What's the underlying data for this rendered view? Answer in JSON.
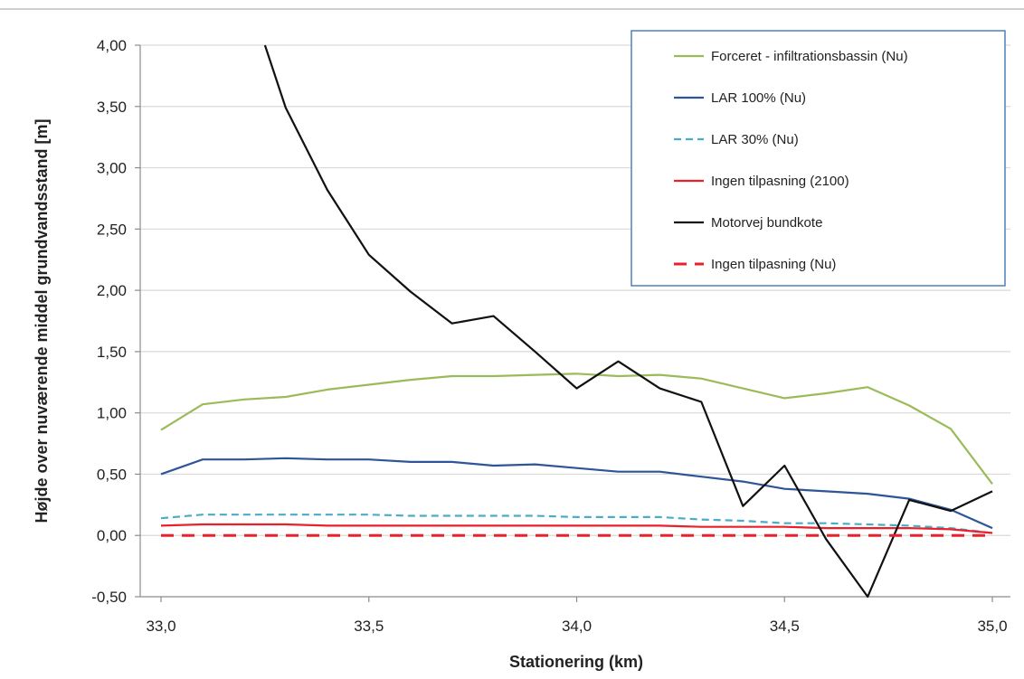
{
  "chart_data": {
    "type": "line",
    "title": "",
    "xlabel": "Stationering (km)",
    "ylabel": "Højde over nuværende middel grundvandsstand [m]",
    "xlim": [
      33.0,
      35.0
    ],
    "ylim": [
      -0.5,
      4.0
    ],
    "x_ticks": [
      33.0,
      33.5,
      34.0,
      34.5,
      35.0
    ],
    "x_tick_labels": [
      "33,0",
      "33,5",
      "34,0",
      "34,5",
      "35,0"
    ],
    "y_ticks": [
      -0.5,
      0.0,
      0.5,
      1.0,
      1.5,
      2.0,
      2.5,
      3.0,
      3.5,
      4.0
    ],
    "y_tick_labels": [
      "-0,50",
      "0,00",
      "0,50",
      "1,00",
      "1,50",
      "2,00",
      "2,50",
      "3,00",
      "3,50",
      "4,00"
    ],
    "grid": "horizontal",
    "legend_position": "top-right",
    "series": [
      {
        "name": "Forceret - infiltrationsbassin (Nu)",
        "color": "#9bbb59",
        "dash": "solid",
        "points": [
          [
            33.0,
            0.86
          ],
          [
            33.1,
            1.07
          ],
          [
            33.2,
            1.11
          ],
          [
            33.3,
            1.13
          ],
          [
            33.4,
            1.19
          ],
          [
            33.5,
            1.23
          ],
          [
            33.6,
            1.27
          ],
          [
            33.7,
            1.3
          ],
          [
            33.8,
            1.3
          ],
          [
            33.9,
            1.31
          ],
          [
            34.0,
            1.32
          ],
          [
            34.1,
            1.3
          ],
          [
            34.2,
            1.31
          ],
          [
            34.3,
            1.28
          ],
          [
            34.4,
            1.2
          ],
          [
            34.5,
            1.12
          ],
          [
            34.6,
            1.16
          ],
          [
            34.7,
            1.21
          ],
          [
            34.8,
            1.06
          ],
          [
            34.9,
            0.87
          ],
          [
            35.0,
            0.42
          ]
        ]
      },
      {
        "name": "LAR 100% (Nu)",
        "color": "#2e5597",
        "dash": "solid",
        "points": [
          [
            33.0,
            0.5
          ],
          [
            33.1,
            0.62
          ],
          [
            33.2,
            0.62
          ],
          [
            33.3,
            0.63
          ],
          [
            33.4,
            0.62
          ],
          [
            33.5,
            0.62
          ],
          [
            33.6,
            0.6
          ],
          [
            33.7,
            0.6
          ],
          [
            33.8,
            0.57
          ],
          [
            33.9,
            0.58
          ],
          [
            34.0,
            0.55
          ],
          [
            34.1,
            0.52
          ],
          [
            34.2,
            0.52
          ],
          [
            34.3,
            0.48
          ],
          [
            34.4,
            0.44
          ],
          [
            34.5,
            0.38
          ],
          [
            34.6,
            0.36
          ],
          [
            34.7,
            0.34
          ],
          [
            34.8,
            0.3
          ],
          [
            34.9,
            0.21
          ],
          [
            35.0,
            0.06
          ]
        ]
      },
      {
        "name": "LAR 30% (Nu)",
        "color": "#4bacc6",
        "dash": "dashed",
        "points": [
          [
            33.0,
            0.14
          ],
          [
            33.1,
            0.17
          ],
          [
            33.2,
            0.17
          ],
          [
            33.3,
            0.17
          ],
          [
            33.4,
            0.17
          ],
          [
            33.5,
            0.17
          ],
          [
            33.6,
            0.16
          ],
          [
            33.7,
            0.16
          ],
          [
            33.8,
            0.16
          ],
          [
            33.9,
            0.16
          ],
          [
            34.0,
            0.15
          ],
          [
            34.1,
            0.15
          ],
          [
            34.2,
            0.15
          ],
          [
            34.3,
            0.13
          ],
          [
            34.4,
            0.12
          ],
          [
            34.5,
            0.1
          ],
          [
            34.6,
            0.1
          ],
          [
            34.7,
            0.09
          ],
          [
            34.8,
            0.08
          ],
          [
            34.9,
            0.06
          ],
          [
            35.0,
            0.02
          ]
        ]
      },
      {
        "name": "Ingen tilpasning (2100)",
        "color": "#e8212b",
        "dash": "solid",
        "points": [
          [
            33.0,
            0.08
          ],
          [
            33.1,
            0.09
          ],
          [
            33.2,
            0.09
          ],
          [
            33.3,
            0.09
          ],
          [
            33.4,
            0.08
          ],
          [
            33.5,
            0.08
          ],
          [
            33.6,
            0.08
          ],
          [
            33.7,
            0.08
          ],
          [
            33.8,
            0.08
          ],
          [
            33.9,
            0.08
          ],
          [
            34.0,
            0.08
          ],
          [
            34.1,
            0.08
          ],
          [
            34.2,
            0.08
          ],
          [
            34.3,
            0.07
          ],
          [
            34.4,
            0.07
          ],
          [
            34.5,
            0.07
          ],
          [
            34.6,
            0.06
          ],
          [
            34.7,
            0.06
          ],
          [
            34.8,
            0.06
          ],
          [
            34.9,
            0.05
          ],
          [
            35.0,
            0.02
          ]
        ]
      },
      {
        "name": "Motorvej bundkote",
        "color": "#111111",
        "dash": "solid",
        "points": [
          [
            33.25,
            4.0
          ],
          [
            33.3,
            3.49
          ],
          [
            33.4,
            2.82
          ],
          [
            33.5,
            2.29
          ],
          [
            33.6,
            1.99
          ],
          [
            33.7,
            1.73
          ],
          [
            33.8,
            1.79
          ],
          [
            33.9,
            1.5
          ],
          [
            34.0,
            1.2
          ],
          [
            34.1,
            1.42
          ],
          [
            34.2,
            1.2
          ],
          [
            34.3,
            1.09
          ],
          [
            34.4,
            0.24
          ],
          [
            34.5,
            0.57
          ],
          [
            34.6,
            -0.03
          ],
          [
            34.7,
            -0.5
          ],
          [
            34.8,
            0.29
          ],
          [
            34.9,
            0.2
          ],
          [
            35.0,
            0.36
          ]
        ]
      },
      {
        "name": "Ingen tilpasning (Nu)",
        "color": "#e8212b",
        "dash": "longdash",
        "points": [
          [
            33.0,
            0.0
          ],
          [
            33.5,
            0.0
          ],
          [
            34.0,
            0.0
          ],
          [
            34.5,
            0.0
          ],
          [
            35.0,
            0.0
          ]
        ]
      }
    ]
  }
}
